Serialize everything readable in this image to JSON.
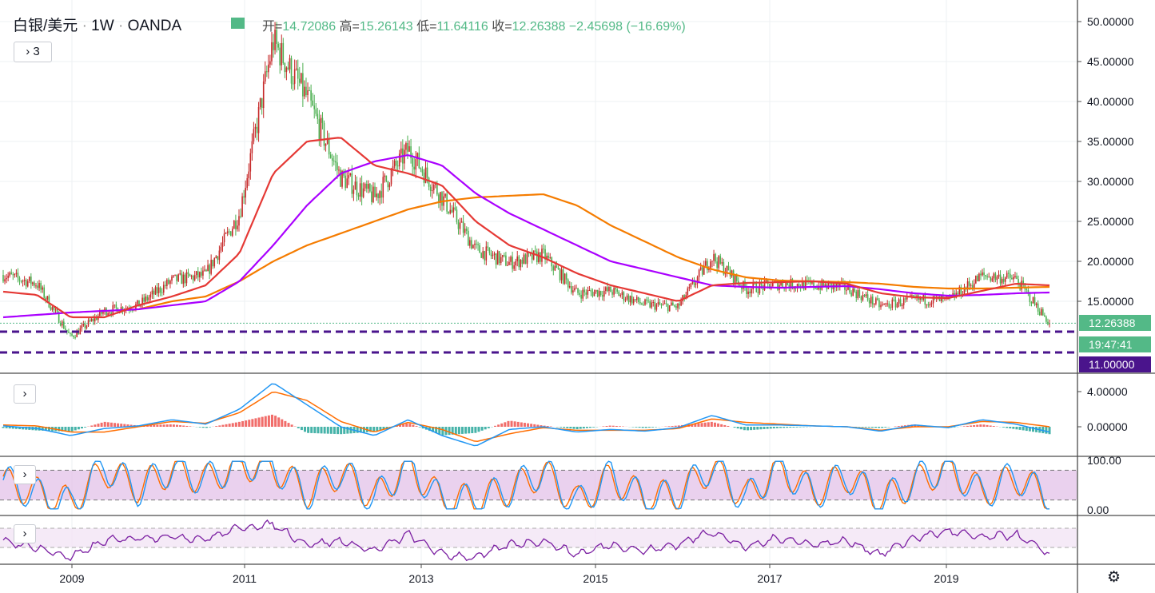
{
  "header": {
    "symbol": "白银/美元",
    "interval": "1W",
    "source": "OANDA",
    "sep": "·",
    "ohlc": {
      "open_key": "开=",
      "open": "14.72086",
      "high_key": "高=",
      "high": "15.26143",
      "low_key": "低=",
      "low": "11.64116",
      "close_key": "收=",
      "close": "12.26388",
      "change": "−2.45698 (−16.69%)"
    },
    "indicator_toggle": "3"
  },
  "colors": {
    "up": "#c62828",
    "down": "#4caf50",
    "ma_short": "#e53935",
    "ma_mid": "#aa00ff",
    "ma_long": "#f57c00",
    "macd": "#2196f3",
    "signal": "#ff6d00",
    "stoch_k": "#2196f3",
    "stoch_d": "#ff6d00",
    "rsi": "#7b1fa2",
    "band_fill": "#e1bee7",
    "hline": "#4a148c",
    "last_price": "#53b987"
  },
  "price_axis": {
    "ticks": [
      "50.00000",
      "45.00000",
      "40.00000",
      "35.00000",
      "30.00000",
      "25.00000",
      "20.00000",
      "15.00000"
    ]
  },
  "tags": {
    "last_price": "12.26388",
    "countdown": "19:47:41",
    "level": "11.00000"
  },
  "macd_axis": {
    "ticks": [
      "4.00000",
      "0.00000"
    ]
  },
  "stoch_axis": {
    "ticks": [
      "100.00",
      "0.00"
    ]
  },
  "time_axis": {
    "labels": [
      "2009",
      "2011",
      "2013",
      "2015",
      "2017",
      "2019"
    ]
  },
  "chart_data": {
    "type": "line",
    "title": "白银/美元 · 1W · OANDA",
    "x": [
      "2008-02",
      "2008-07",
      "2008-10",
      "2009-03",
      "2009-08",
      "2010-01",
      "2010-06",
      "2010-11",
      "2011-04",
      "2011-08",
      "2012-01",
      "2012-06",
      "2012-10",
      "2013-03",
      "2013-08",
      "2014-01",
      "2014-06",
      "2014-11",
      "2015-04",
      "2015-09",
      "2016-01",
      "2016-07",
      "2016-12",
      "2017-05",
      "2017-10",
      "2018-03",
      "2018-08",
      "2019-01",
      "2019-06",
      "2019-09",
      "2020-01",
      "2020-03"
    ],
    "series": [
      {
        "values": [
          18.3,
          17.2,
          10.5,
          13.8,
          14.5,
          17.6,
          18.3,
          26.0,
          47.5,
          40.5,
          30.5,
          28.0,
          34.0,
          28.0,
          21.5,
          19.8,
          20.8,
          16.0,
          16.3,
          14.6,
          14.3,
          20.6,
          16.5,
          17.2,
          17.0,
          16.7,
          14.4,
          15.2,
          15.1,
          18.2,
          17.8,
          12.26
        ]
      },
      {
        "values": [
          16.2,
          15.8,
          13.0,
          13.0,
          14.5,
          15.6,
          17.0,
          21.0,
          31.0,
          35.0,
          35.5,
          32.0,
          31.0,
          29.5,
          25.0,
          22.0,
          20.5,
          18.5,
          17.0,
          16.0,
          15.0,
          17.0,
          17.3,
          17.4,
          17.5,
          17.2,
          16.0,
          15.5,
          15.4,
          16.3,
          17.2,
          17.0
        ]
      },
      {
        "values": [
          13.0,
          13.3,
          13.6,
          13.8,
          14.0,
          14.5,
          15.0,
          17.5,
          22.0,
          27.0,
          31.0,
          32.5,
          33.3,
          32.0,
          28.5,
          26.0,
          24.0,
          22.0,
          20.0,
          19.0,
          18.0,
          17.0,
          16.8,
          16.7,
          16.8,
          16.9,
          16.5,
          16.0,
          15.7,
          15.8,
          16.0,
          16.1
        ]
      },
      {
        "values": [
          null,
          null,
          null,
          null,
          14.0,
          15.0,
          15.6,
          17.5,
          20.0,
          22.0,
          23.5,
          25.0,
          26.5,
          27.5,
          28.0,
          28.2,
          28.4,
          27.0,
          24.5,
          22.5,
          20.5,
          19.0,
          18.0,
          17.6,
          17.5,
          17.4,
          17.2,
          16.8,
          16.6,
          16.6,
          16.7,
          16.8
        ]
      }
    ],
    "macd_series": [
      {
        "values": [
          0.1,
          -0.2,
          -1.0,
          -0.2,
          0.1,
          0.8,
          0.3,
          2.0,
          5.0,
          2.5,
          0.0,
          -1.0,
          0.8,
          -1.0,
          -2.2,
          -0.3,
          0.0,
          -0.6,
          -0.3,
          -0.5,
          -0.1,
          1.3,
          0.2,
          0.2,
          0.1,
          0.0,
          -0.5,
          0.2,
          -0.1,
          0.8,
          0.3,
          -0.6
        ]
      },
      {
        "values": [
          0.2,
          0.1,
          -0.6,
          -0.6,
          0.0,
          0.6,
          0.4,
          1.6,
          4.0,
          3.0,
          0.6,
          -0.6,
          0.5,
          -0.3,
          -1.7,
          -0.8,
          -0.1,
          -0.4,
          -0.4,
          -0.4,
          -0.2,
          0.9,
          0.5,
          0.3,
          0.1,
          0.0,
          -0.4,
          0.0,
          0.0,
          0.6,
          0.5,
          0.0
        ]
      }
    ],
    "stoch_series": [
      {
        "values": [
          60,
          30,
          10,
          90,
          40,
          85,
          60,
          95,
          90,
          30,
          80,
          20,
          95,
          15,
          20,
          40,
          80,
          10,
          70,
          20,
          30,
          90,
          20,
          90,
          30,
          70,
          15,
          60,
          90,
          30,
          70,
          20
        ]
      },
      {
        "values": [
          55,
          35,
          15,
          80,
          45,
          80,
          60,
          90,
          85,
          35,
          75,
          25,
          90,
          20,
          22,
          40,
          75,
          15,
          65,
          25,
          32,
          85,
          25,
          85,
          35,
          68,
          18,
          55,
          85,
          35,
          65,
          25
        ]
      }
    ],
    "stoch_levels": [
      80,
      20
    ],
    "rsi_series": [
      {
        "values": [
          55,
          45,
          30,
          55,
          60,
          62,
          58,
          75,
          80,
          50,
          55,
          40,
          65,
          35,
          30,
          50,
          55,
          35,
          50,
          40,
          50,
          70,
          45,
          60,
          50,
          55,
          35,
          60,
          70,
          60,
          65,
          35
        ]
      }
    ],
    "ylim_price": [
      10.0,
      52.0
    ],
    "ylim_macd": [
      -3.0,
      6.0
    ],
    "ylim_stoch": [
      0,
      100
    ],
    "ylim_rsi": [
      20,
      90
    ],
    "levels": [
      11.8,
      11.0
    ]
  }
}
